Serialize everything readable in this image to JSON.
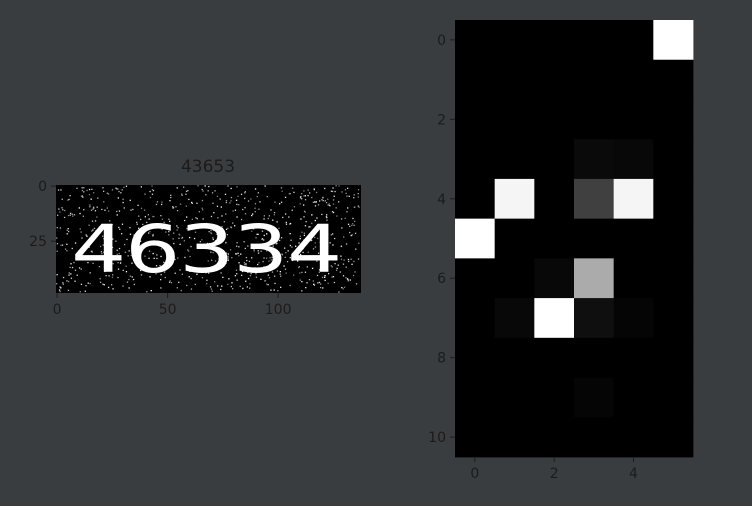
{
  "chart_data": [
    {
      "type": "image",
      "title": "43653",
      "image_text": "46334",
      "image_width": 138,
      "image_height": 49,
      "xticks": [
        0,
        50,
        100
      ],
      "yticks": [
        0,
        25
      ],
      "background": "#000000",
      "foreground": "#ffffff"
    },
    {
      "type": "heatmap",
      "title": "",
      "rows": 11,
      "cols": 6,
      "xticks": [
        0,
        2,
        4
      ],
      "yticks": [
        0,
        2,
        4,
        6,
        8,
        10
      ],
      "colormap": "gray",
      "values": [
        [
          0,
          0,
          0,
          0,
          0,
          1
        ],
        [
          0,
          0,
          0,
          0,
          0,
          0
        ],
        [
          0,
          0,
          0,
          0,
          0,
          0
        ],
        [
          0,
          0,
          0,
          0.04,
          0.03,
          0
        ],
        [
          0,
          0.96,
          0,
          0.25,
          0.96,
          0
        ],
        [
          1,
          0,
          0,
          0,
          0,
          0
        ],
        [
          0,
          0,
          0.03,
          0.67,
          0,
          0
        ],
        [
          0,
          0.03,
          1,
          0.06,
          0.02,
          0
        ],
        [
          0,
          0,
          0,
          0,
          0,
          0
        ],
        [
          0,
          0,
          0,
          0.02,
          0,
          0
        ],
        [
          0,
          0,
          0,
          0,
          0,
          0
        ]
      ]
    }
  ]
}
